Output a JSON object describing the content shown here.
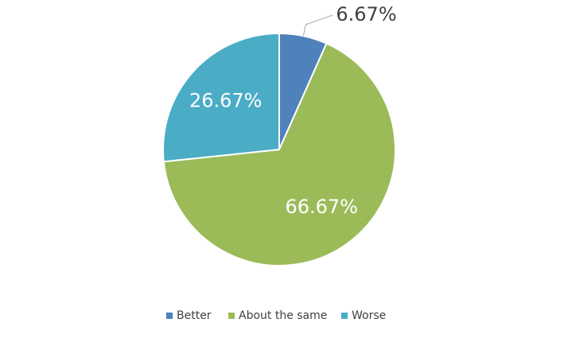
{
  "chart_data": {
    "type": "pie",
    "categories": [
      "Better",
      "About the same",
      "Worse"
    ],
    "values": [
      6.67,
      66.67,
      26.67
    ],
    "value_labels": [
      "6.67%",
      "66.67%",
      "26.67%"
    ],
    "colors": [
      "#4f81bd",
      "#9bbb59",
      "#4bacc6"
    ],
    "legend": "bottom"
  }
}
